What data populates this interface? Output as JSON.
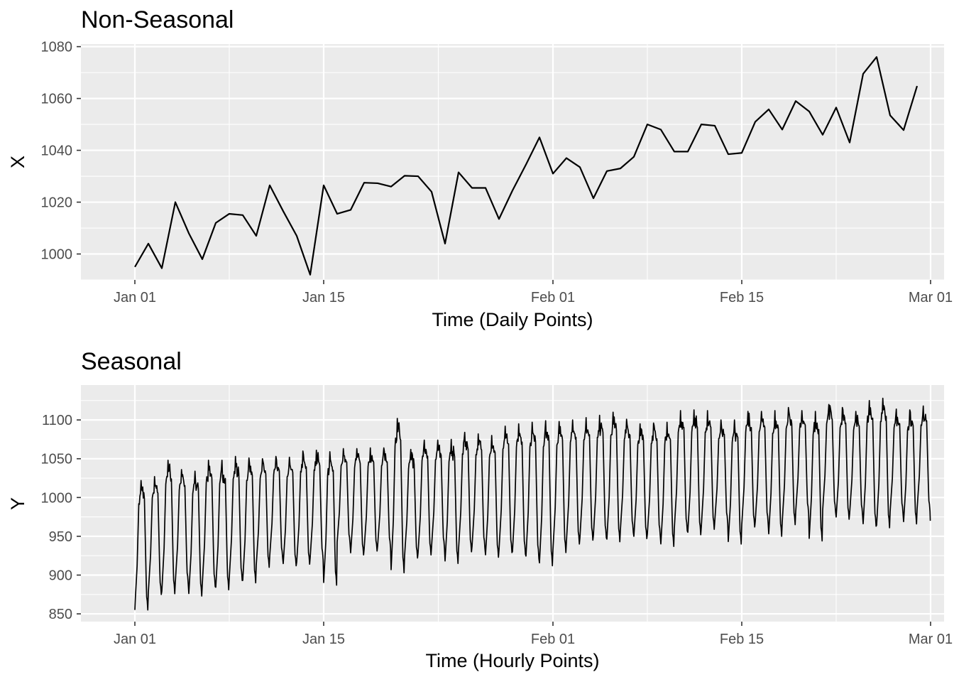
{
  "chart_data": [
    {
      "type": "line",
      "title": "Non-Seasonal",
      "xlabel": "Time  (Daily Points)",
      "ylabel": "X",
      "xlim": [
        "2022-12-28",
        "2023-03-02"
      ],
      "ylim": [
        990,
        1081
      ],
      "x_ticks": [
        {
          "date": "2023-01-01",
          "label": "Jan 01"
        },
        {
          "date": "2023-01-15",
          "label": "Jan 15"
        },
        {
          "date": "2023-02-01",
          "label": "Feb 01"
        },
        {
          "date": "2023-02-15",
          "label": "Feb 15"
        },
        {
          "date": "2023-03-01",
          "label": "Mar 01"
        }
      ],
      "y_ticks": [
        1000,
        1020,
        1040,
        1060,
        1080
      ],
      "grid": true,
      "start_date": "2023-01-01",
      "frequency": "daily",
      "series": [
        {
          "values": [
            995,
            1004,
            994.5,
            1020,
            1008,
            998,
            1012,
            1015.5,
            1015,
            1007,
            1026.5,
            1016.5,
            1007,
            992,
            1026.5,
            1015.5,
            1017,
            1027.5,
            1027.3,
            1026,
            1030.2,
            1030,
            1024,
            1004,
            1031.5,
            1025.5,
            1025.5,
            1013.5,
            1024.5,
            1034.5,
            1045,
            1031,
            1037,
            1033.5,
            1021.5,
            1032,
            1033,
            1037.5,
            1050,
            1048,
            1039.5,
            1039.5,
            1050,
            1049.5,
            1038.5,
            1039,
            1051,
            1055.8,
            1048,
            1059,
            1055,
            1046,
            1056.5,
            1043,
            1069.5,
            1076,
            1053.5,
            1047.8,
            1064.8
          ]
        }
      ]
    },
    {
      "type": "line",
      "title": "Seasonal",
      "xlabel": "Time  (Hourly Points)",
      "ylabel": "Y",
      "xlim": [
        "2022-12-28",
        "2023-03-02"
      ],
      "ylim": [
        840,
        1145
      ],
      "x_ticks": [
        {
          "date": "2023-01-01",
          "label": "Jan 01"
        },
        {
          "date": "2023-01-15",
          "label": "Jan 15"
        },
        {
          "date": "2023-02-01",
          "label": "Feb 01"
        },
        {
          "date": "2023-02-15",
          "label": "Feb 15"
        },
        {
          "date": "2023-03-01",
          "label": "Mar 01"
        }
      ],
      "y_ticks": [
        850,
        900,
        950,
        1000,
        1050,
        1100
      ],
      "grid": true,
      "start_date": "2023-01-01",
      "frequency": "hourly",
      "daily_cycles": {
        "start": [
          "2023-01-01 00:00",
          "2023-01-02 00:00",
          "2023-01-03 00:00",
          "2023-01-04 00:00",
          "2023-01-05 00:00",
          "2023-01-06 00:00",
          "2023-01-07 00:00",
          "2023-01-08 00:00",
          "2023-01-09 00:00",
          "2023-01-10 00:00",
          "2023-01-11 00:00",
          "2023-01-12 00:00",
          "2023-01-13 00:00",
          "2023-01-14 00:00",
          "2023-01-15 00:00",
          "2023-01-16 00:00",
          "2023-01-17 00:00",
          "2023-01-18 00:00",
          "2023-01-19 00:00",
          "2023-01-20 00:00",
          "2023-01-21 00:00",
          "2023-01-22 00:00",
          "2023-01-23 00:00",
          "2023-01-24 00:00",
          "2023-01-25 00:00",
          "2023-01-26 00:00",
          "2023-01-27 00:00",
          "2023-01-28 00:00",
          "2023-01-29 00:00",
          "2023-01-30 00:00",
          "2023-01-31 00:00",
          "2023-02-01 00:00",
          "2023-02-02 00:00",
          "2023-02-03 00:00",
          "2023-02-04 00:00",
          "2023-02-05 00:00",
          "2023-02-06 00:00",
          "2023-02-07 00:00",
          "2023-02-08 00:00",
          "2023-02-09 00:00",
          "2023-02-10 00:00",
          "2023-02-11 00:00",
          "2023-02-12 00:00",
          "2023-02-13 00:00",
          "2023-02-14 00:00",
          "2023-02-15 00:00",
          "2023-02-16 00:00",
          "2023-02-17 00:00",
          "2023-02-18 00:00",
          "2023-02-19 00:00",
          "2023-02-20 00:00",
          "2023-02-21 00:00",
          "2023-02-22 00:00",
          "2023-02-23 00:00",
          "2023-02-24 00:00",
          "2023-02-25 00:00",
          "2023-02-26 00:00",
          "2023-02-27 00:00",
          "2023-02-28 00:00"
        ],
        "min": [
          855,
          875,
          876,
          888,
          873,
          885,
          881,
          893,
          890,
          910,
          922,
          912,
          914,
          920,
          887,
          940,
          926,
          931,
          935,
          903,
          922,
          926,
          934,
          915,
          930,
          934,
          923,
          929,
          927,
          921,
          912,
          929,
          940,
          945,
          948,
          943,
          955,
          947,
          950,
          937,
          957,
          952,
          959,
          967,
          940,
          962,
          966,
          950,
          965,
          979,
          944,
          981,
          972,
          977,
          963,
          961,
          979,
          966,
          982
        ],
        "max": [
          1022,
          1027,
          1048,
          1036,
          1034,
          1048,
          1048,
          1053,
          1051,
          1050,
          1053,
          1052,
          1060,
          1061,
          1059,
          1063,
          1063,
          1064,
          1064,
          1102,
          1062,
          1074,
          1074,
          1075,
          1084,
          1082,
          1080,
          1092,
          1095,
          1097,
          1099,
          1098,
          1100,
          1103,
          1106,
          1110,
          1101,
          1095,
          1096,
          1097,
          1112,
          1113,
          1112,
          1100,
          1100,
          1111,
          1111,
          1112,
          1116,
          1112,
          1111,
          1120,
          1116,
          1111,
          1125,
          1128,
          1114,
          1113,
          1118
        ]
      },
      "end_value": 970
    }
  ]
}
